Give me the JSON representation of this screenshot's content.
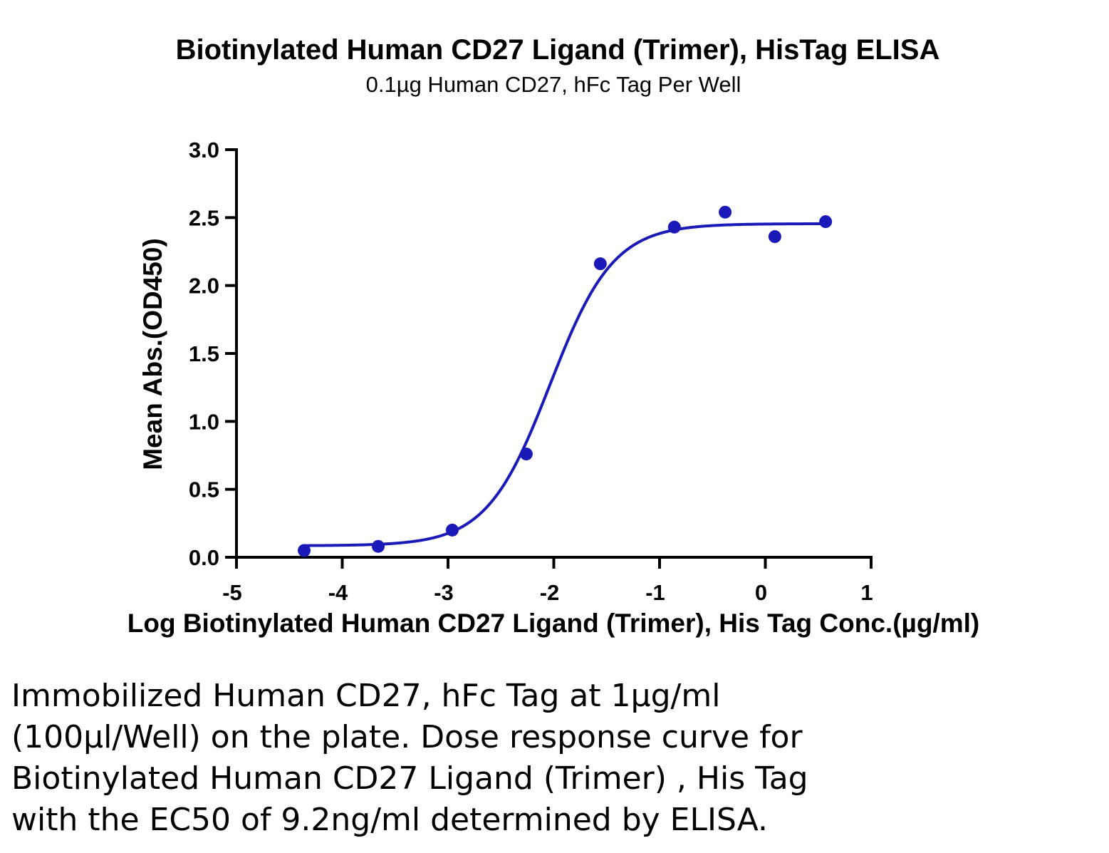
{
  "chart_data": {
    "type": "scatter",
    "title": "Biotinylated Human CD27 Ligand (Trimer), HisTag ELISA",
    "subtitle": "0.1µg Human CD27, hFc Tag Per Well",
    "xlabel": "Log Biotinylated Human CD27 Ligand (Trimer), His Tag Conc.(µg/ml)",
    "ylabel": "Mean Abs.(OD450)",
    "xlim": [
      -5,
      1
    ],
    "ylim": [
      0,
      3.0
    ],
    "x_ticks": [
      -5,
      -4,
      -3,
      -2,
      -1,
      0,
      1
    ],
    "x_tick_labels": [
      "-5",
      "-4",
      "-3",
      "-2",
      "-1",
      "0",
      "1"
    ],
    "y_ticks": [
      0,
      0.5,
      1.0,
      1.5,
      2.0,
      2.5,
      3.0
    ],
    "y_tick_labels": [
      "0.0",
      "0.5",
      "1.0",
      "1.5",
      "2.0",
      "2.5",
      "3.0"
    ],
    "grid": false,
    "legend": "none",
    "color": "#1a1ab8",
    "series": [
      {
        "points": [
          {
            "x": -4.36,
            "y": 0.05
          },
          {
            "x": -3.66,
            "y": 0.08
          },
          {
            "x": -2.96,
            "y": 0.2
          },
          {
            "x": -2.26,
            "y": 0.76
          },
          {
            "x": -1.56,
            "y": 2.16
          },
          {
            "x": -0.86,
            "y": 2.43
          },
          {
            "x": -0.38,
            "y": 2.54
          },
          {
            "x": 0.09,
            "y": 2.36
          },
          {
            "x": 0.57,
            "y": 2.47
          }
        ],
        "fit": {
          "model": "four-parameter logistic",
          "bottom": 0.085,
          "top": 2.455,
          "log_ec50": -2.036,
          "hill_slope": 1.45,
          "x_range": [
            -4.36,
            0.57
          ]
        }
      }
    ]
  },
  "caption": {
    "lines": [
      "Immobilized Human CD27, hFc Tag at 1µg/ml",
      "(100µl/Well) on the plate. Dose response curve for",
      "Biotinylated Human CD27 Ligand (Trimer) , His Tag",
      "with the EC50 of 9.2ng/ml determined by ELISA."
    ]
  }
}
